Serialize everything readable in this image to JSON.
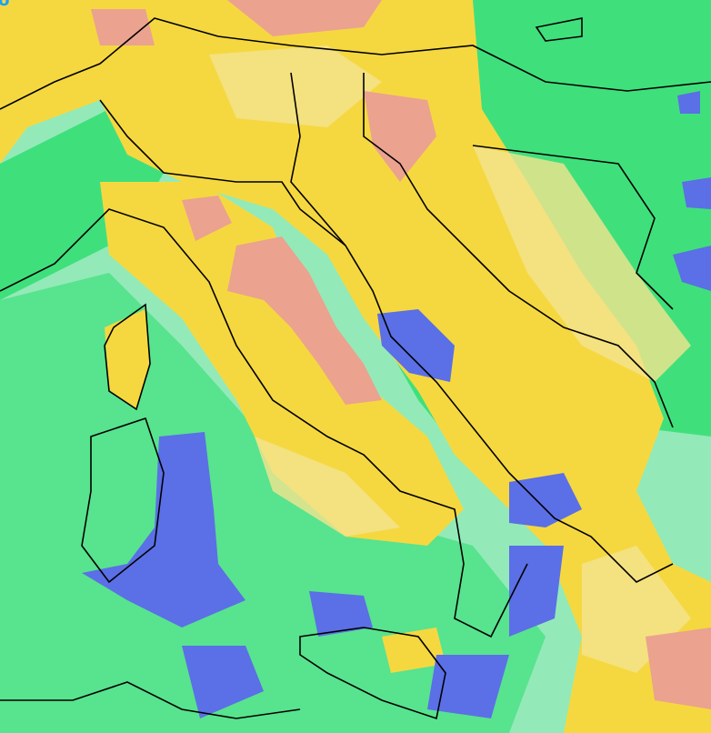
{
  "map": {
    "type": "weather-anomaly-map",
    "region": "Italy",
    "corner_label": "ao",
    "palette": {
      "base_sea": "#93eab8",
      "green": "#3fe07c",
      "light_green": "#8fe9b4",
      "yellow": "#f5d840",
      "light_yellow": "#f4e48f",
      "salmon": "#eba28f",
      "blue": "#5b6fe6",
      "border": "#000000"
    }
  }
}
